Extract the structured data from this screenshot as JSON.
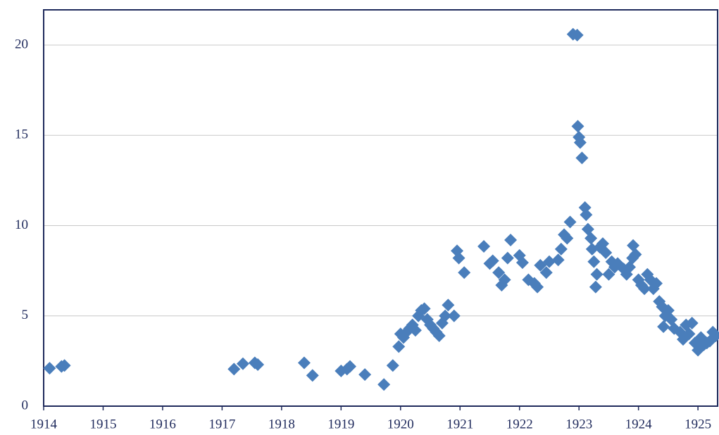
{
  "chart_data": {
    "type": "scatter",
    "x": [
      1914.1,
      1914.3,
      1914.35,
      1917.2,
      1917.35,
      1917.55,
      1917.6,
      1918.38,
      1918.52,
      1919.0,
      1919.1,
      1919.15,
      1919.4,
      1919.72,
      1919.87,
      1919.97,
      1920.05,
      1920.0,
      1920.1,
      1920.15,
      1920.2,
      1920.25,
      1920.3,
      1920.35,
      1920.4,
      1920.45,
      1920.5,
      1920.55,
      1920.6,
      1920.65,
      1920.7,
      1920.75,
      1920.8,
      1920.9,
      1920.95,
      1920.98,
      1921.07,
      1921.4,
      1921.5,
      1921.55,
      1921.65,
      1921.7,
      1921.75,
      1921.8,
      1921.85,
      1922.0,
      1922.05,
      1922.15,
      1922.25,
      1922.3,
      1922.35,
      1922.45,
      1922.5,
      1922.65,
      1922.7,
      1922.75,
      1922.8,
      1922.85,
      1922.9,
      1922.97,
      1922.98,
      1923.0,
      1923.02,
      1923.05,
      1923.1,
      1923.12,
      1923.15,
      1923.2,
      1923.22,
      1923.25,
      1923.28,
      1923.3,
      1923.35,
      1923.4,
      1923.45,
      1923.5,
      1923.55,
      1923.6,
      1923.65,
      1923.75,
      1923.8,
      1923.85,
      1923.9,
      1923.91,
      1923.95,
      1924.0,
      1924.05,
      1924.1,
      1924.15,
      1924.2,
      1924.25,
      1924.3,
      1924.35,
      1924.4,
      1924.42,
      1924.45,
      1924.5,
      1924.55,
      1924.6,
      1924.7,
      1924.75,
      1924.8,
      1924.85,
      1924.9,
      1924.95,
      1925.0,
      1925.05,
      1925.1,
      1925.15,
      1925.2,
      1925.25,
      1925.3
    ],
    "values": [
      2.1,
      2.2,
      2.25,
      2.05,
      2.35,
      2.4,
      2.3,
      2.4,
      1.7,
      1.95,
      2.05,
      2.2,
      1.75,
      1.2,
      2.25,
      3.3,
      3.8,
      4.0,
      4.1,
      4.3,
      4.5,
      4.2,
      5.0,
      5.3,
      5.4,
      4.8,
      4.5,
      4.3,
      4.1,
      3.9,
      4.6,
      5.0,
      5.6,
      5.0,
      8.6,
      8.2,
      7.4,
      8.85,
      7.9,
      8.05,
      7.4,
      6.7,
      7.0,
      8.2,
      9.2,
      8.35,
      7.95,
      7.0,
      6.8,
      6.6,
      7.8,
      7.4,
      8.0,
      8.1,
      8.7,
      9.5,
      9.3,
      10.2,
      20.6,
      20.55,
      15.5,
      14.9,
      14.6,
      13.75,
      11.0,
      10.6,
      9.8,
      9.3,
      8.7,
      8.0,
      6.6,
      7.3,
      8.8,
      9.0,
      8.5,
      7.3,
      8.0,
      7.7,
      7.9,
      7.6,
      7.3,
      7.7,
      8.2,
      8.9,
      8.4,
      7.0,
      6.7,
      6.5,
      7.3,
      7.0,
      6.5,
      6.8,
      5.8,
      5.5,
      4.4,
      5.0,
      5.3,
      4.8,
      4.3,
      4.1,
      3.7,
      4.5,
      4.0,
      4.6,
      3.5,
      3.1,
      3.8,
      3.4,
      3.5,
      3.6,
      4.1,
      3.9
    ],
    "color": "#4a7ebb",
    "xlim": [
      1914,
      1925.33
    ],
    "ylim": [
      0,
      21.95
    ],
    "xticks": [
      1914,
      1915,
      1916,
      1917,
      1918,
      1919,
      1920,
      1921,
      1922,
      1923,
      1924,
      1925
    ],
    "yticks": [
      0,
      5,
      10,
      15,
      20
    ],
    "grid": true
  }
}
